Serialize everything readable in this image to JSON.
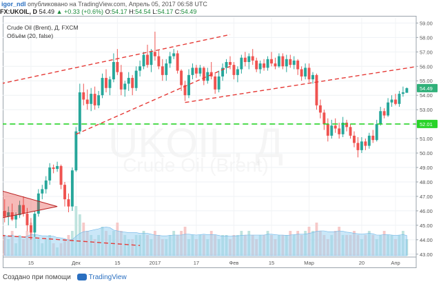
{
  "header": {
    "author": "igor_ndl",
    "published": "опубликовано на TradingView.com, Апрель 05, 2017 06:58 UTC"
  },
  "quote": {
    "symbol": "FX:UKOIL, D",
    "open_label": "O",
    "open": "54.17",
    "high_label": "H",
    "high": "54.54",
    "low_label": "L",
    "low": "54.17",
    "close_label": "C",
    "close": "54.49",
    "last": "54.49",
    "change": "+0.33 (+0.6%)"
  },
  "legend": {
    "title": "Crude Oil (Brent), Д, FXCM",
    "volume_study": "Объём (20, false)"
  },
  "watermark": {
    "symbol": "UKOIL, Д",
    "name": "Crude Oil (Brent)"
  },
  "footer": {
    "created_with": "Создано при помощи",
    "brand": "TradingView"
  },
  "colors": {
    "up": "#26a69a",
    "down": "#ef5350",
    "trend": "#e53935",
    "support": "#28d428",
    "volume_ma": "#9fd3f2",
    "price_badge": "#28d428",
    "last_badge": "#31b07a"
  },
  "chart_data": {
    "type": "candlestick",
    "y_ticks": [
      "59.00",
      "58.00",
      "57.00",
      "56.00",
      "55.00",
      "54.00",
      "53.00",
      "52.00",
      "51.00",
      "50.00",
      "49.00",
      "48.00",
      "47.00",
      "46.00",
      "45.00",
      "44.00",
      "43.00"
    ],
    "ylim": [
      42.8,
      59.4
    ],
    "x_ticks": [
      {
        "label": "15",
        "index": 7
      },
      {
        "label": "Дек",
        "index": 19
      },
      {
        "label": "15",
        "index": 30
      },
      {
        "label": "2017",
        "index": 40
      },
      {
        "label": "17",
        "index": 51
      },
      {
        "label": "Фев",
        "index": 61
      },
      {
        "label": "15",
        "index": 71
      },
      {
        "label": "Мар",
        "index": 81
      },
      {
        "label": "20",
        "index": 95
      },
      {
        "label": "Апр",
        "index": 104
      }
    ],
    "n_bars": 110,
    "support_level": 52.01,
    "last_price": 54.49,
    "candles": [
      [
        46.0,
        46.8,
        45.2,
        45.6,
        1
      ],
      [
        45.6,
        46.3,
        45.0,
        45.9,
        1
      ],
      [
        45.9,
        46.5,
        45.3,
        45.4,
        1
      ],
      [
        45.4,
        45.9,
        44.8,
        45.7,
        1
      ],
      [
        45.7,
        46.7,
        45.5,
        46.4,
        1
      ],
      [
        46.4,
        47.0,
        45.6,
        45.8,
        1
      ],
      [
        45.8,
        46.2,
        44.6,
        45.0,
        1
      ],
      [
        45.0,
        45.5,
        44.0,
        44.5,
        1
      ],
      [
        44.5,
        46.0,
        44.2,
        45.8,
        1
      ],
      [
        45.8,
        47.5,
        45.6,
        47.2,
        1
      ],
      [
        47.2,
        47.8,
        46.8,
        47.5,
        1
      ],
      [
        47.5,
        48.4,
        47.2,
        48.1,
        1
      ],
      [
        48.1,
        49.3,
        47.8,
        49.0,
        1
      ],
      [
        49.0,
        49.2,
        48.6,
        48.9,
        1
      ],
      [
        48.9,
        49.4,
        48.7,
        49.1,
        1
      ],
      [
        49.1,
        49.2,
        47.5,
        47.8,
        1
      ],
      [
        47.8,
        48.0,
        46.3,
        46.8,
        1
      ],
      [
        46.8,
        47.2,
        45.9,
        46.3,
        1
      ],
      [
        46.3,
        49.0,
        46.0,
        48.8,
        2
      ],
      [
        48.8,
        51.8,
        48.7,
        51.5,
        4
      ],
      [
        51.5,
        54.8,
        51.3,
        54.2,
        3
      ],
      [
        54.2,
        54.8,
        53.3,
        53.7,
        2
      ],
      [
        53.7,
        54.4,
        53.0,
        53.4,
        2
      ],
      [
        53.4,
        54.5,
        52.9,
        54.1,
        2
      ],
      [
        54.1,
        54.6,
        53.0,
        53.3,
        1
      ],
      [
        53.3,
        54.3,
        53.1,
        54.0,
        2
      ],
      [
        54.0,
        55.5,
        53.8,
        55.2,
        2
      ],
      [
        55.2,
        55.8,
        54.2,
        54.5,
        2
      ],
      [
        54.5,
        55.3,
        54.0,
        55.1,
        1
      ],
      [
        55.1,
        56.9,
        54.9,
        56.3,
        2
      ],
      [
        56.3,
        57.2,
        55.4,
        55.6,
        2
      ],
      [
        55.6,
        56.1,
        54.0,
        54.4,
        2
      ],
      [
        54.4,
        55.0,
        53.9,
        54.8,
        1
      ],
      [
        54.8,
        55.6,
        54.3,
        55.2,
        1
      ],
      [
        55.2,
        55.4,
        54.0,
        54.5,
        1
      ],
      [
        54.5,
        56.0,
        54.3,
        55.7,
        1
      ],
      [
        55.7,
        56.4,
        55.3,
        56.0,
        1
      ],
      [
        56.0,
        57.0,
        55.8,
        56.8,
        1
      ],
      [
        56.8,
        57.5,
        55.9,
        56.1,
        1
      ],
      [
        56.1,
        57.2,
        55.6,
        57.0,
        2
      ],
      [
        57.0,
        58.4,
        56.4,
        56.7,
        2
      ],
      [
        56.7,
        57.1,
        55.8,
        56.0,
        2
      ],
      [
        56.0,
        56.5,
        55.0,
        55.4,
        1
      ],
      [
        55.4,
        56.5,
        55.0,
        56.2,
        1
      ],
      [
        56.2,
        57.0,
        55.9,
        56.7,
        1
      ],
      [
        56.7,
        57.2,
        56.5,
        56.9,
        1
      ],
      [
        56.9,
        57.1,
        55.5,
        55.7,
        2
      ],
      [
        55.7,
        55.8,
        54.3,
        54.7,
        1
      ],
      [
        54.7,
        55.0,
        53.6,
        54.0,
        2
      ],
      [
        54.0,
        55.8,
        53.8,
        55.4,
        1
      ],
      [
        55.4,
        56.2,
        55.1,
        55.9,
        1
      ],
      [
        55.9,
        56.1,
        55.2,
        55.5,
        1
      ],
      [
        55.5,
        56.1,
        55.3,
        55.9,
        1
      ],
      [
        55.9,
        56.0,
        54.7,
        55.0,
        1
      ],
      [
        55.0,
        55.9,
        54.8,
        55.6,
        1
      ],
      [
        55.6,
        56.3,
        55.1,
        55.3,
        1
      ],
      [
        55.3,
        55.5,
        54.1,
        54.4,
        1
      ],
      [
        54.4,
        55.7,
        54.2,
        55.3,
        1
      ],
      [
        55.3,
        56.2,
        55.0,
        55.9,
        1
      ],
      [
        55.9,
        56.5,
        55.5,
        56.3,
        1
      ],
      [
        56.3,
        56.7,
        55.8,
        56.1,
        1
      ],
      [
        56.1,
        56.3,
        55.1,
        55.4,
        1
      ],
      [
        55.4,
        56.0,
        54.9,
        55.8,
        1
      ],
      [
        55.8,
        56.8,
        55.5,
        56.6,
        1
      ],
      [
        56.6,
        57.0,
        56.0,
        56.3,
        1
      ],
      [
        56.3,
        56.9,
        55.8,
        56.7,
        1
      ],
      [
        56.7,
        57.2,
        56.1,
        56.4,
        1
      ],
      [
        56.4,
        56.6,
        55.6,
        55.8,
        1
      ],
      [
        55.8,
        56.4,
        55.5,
        56.2,
        1
      ],
      [
        56.2,
        56.5,
        55.7,
        55.9,
        1
      ],
      [
        55.9,
        56.7,
        55.7,
        56.5,
        1
      ],
      [
        56.5,
        57.0,
        56.0,
        56.2,
        1
      ],
      [
        56.2,
        56.6,
        55.8,
        56.0,
        1
      ],
      [
        56.0,
        56.9,
        55.9,
        56.7,
        1
      ],
      [
        56.7,
        56.9,
        55.8,
        56.0,
        1
      ],
      [
        56.0,
        56.8,
        55.6,
        56.5,
        1
      ],
      [
        56.5,
        56.8,
        55.9,
        56.1,
        1
      ],
      [
        56.1,
        56.7,
        55.8,
        56.4,
        1
      ],
      [
        56.4,
        56.5,
        55.4,
        55.8,
        1
      ],
      [
        55.8,
        56.0,
        55.0,
        55.3,
        1
      ],
      [
        55.3,
        56.2,
        55.1,
        55.9,
        1
      ],
      [
        55.9,
        56.2,
        54.9,
        55.1,
        2
      ],
      [
        55.1,
        55.6,
        54.8,
        55.4,
        2
      ],
      [
        55.4,
        55.5,
        53.0,
        53.3,
        2
      ],
      [
        53.3,
        53.7,
        52.4,
        52.8,
        2
      ],
      [
        52.8,
        53.0,
        51.6,
        52.0,
        2
      ],
      [
        52.0,
        52.4,
        50.8,
        51.2,
        2
      ],
      [
        51.2,
        52.3,
        51.0,
        51.9,
        1
      ],
      [
        51.9,
        52.4,
        51.4,
        51.7,
        1
      ],
      [
        51.7,
        52.1,
        51.0,
        51.3,
        1
      ],
      [
        51.3,
        52.5,
        51.1,
        52.1,
        1
      ],
      [
        52.1,
        52.3,
        51.5,
        51.8,
        1
      ],
      [
        51.8,
        52.0,
        51.0,
        51.2,
        1
      ],
      [
        51.2,
        51.5,
        50.4,
        50.7,
        1
      ],
      [
        50.7,
        51.1,
        49.7,
        50.2,
        1
      ],
      [
        50.2,
        51.1,
        50.0,
        50.8,
        1
      ],
      [
        50.8,
        51.0,
        50.2,
        50.5,
        1
      ],
      [
        50.5,
        51.4,
        50.3,
        51.2,
        1
      ],
      [
        51.2,
        51.6,
        50.7,
        50.9,
        1
      ],
      [
        50.9,
        52.3,
        50.8,
        52.0,
        1
      ],
      [
        52.0,
        53.2,
        51.9,
        52.9,
        1
      ],
      [
        52.9,
        53.1,
        52.4,
        52.6,
        1
      ],
      [
        52.6,
        53.8,
        52.5,
        53.5,
        1
      ],
      [
        53.5,
        54.0,
        53.2,
        53.7,
        1
      ],
      [
        53.7,
        54.1,
        53.3,
        53.4,
        1
      ],
      [
        53.4,
        54.3,
        53.2,
        54.1,
        1
      ],
      [
        54.1,
        54.6,
        53.9,
        54.2,
        1
      ],
      [
        54.17,
        54.54,
        54.17,
        54.49,
        1
      ],
      [
        54.5,
        54.6,
        54.4,
        54.5,
        0
      ],
      [
        54.5,
        54.6,
        54.4,
        54.5,
        0
      ]
    ],
    "volumes": [
      5,
      4,
      6,
      3,
      5,
      4,
      6,
      8,
      5,
      4,
      3,
      4,
      5,
      3,
      2,
      3,
      4,
      5,
      6,
      12,
      10,
      8,
      6,
      5,
      4,
      5,
      7,
      6,
      5,
      6,
      8,
      6,
      5,
      4,
      4,
      5,
      5,
      6,
      5,
      4,
      6,
      5,
      4,
      4,
      5,
      6,
      5,
      6,
      7,
      4,
      5,
      4,
      5,
      5,
      4,
      6,
      5,
      4,
      5,
      5,
      4,
      5,
      5,
      6,
      5,
      6,
      5,
      4,
      5,
      5,
      6,
      5,
      4,
      5,
      5,
      5,
      6,
      5,
      6,
      5,
      6,
      7,
      6,
      8,
      6,
      5,
      4,
      5,
      6,
      7,
      5,
      5,
      5,
      6,
      5,
      4,
      5,
      6,
      5,
      4,
      5,
      6,
      5,
      5,
      4,
      5,
      6,
      4,
      0,
      0
    ]
  }
}
